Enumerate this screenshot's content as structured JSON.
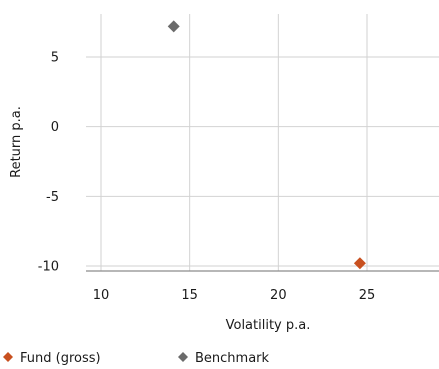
{
  "chart_data": {
    "type": "scatter",
    "xlabel": "Volatility p.a.",
    "ylabel": "Return p.a.",
    "xlim": [
      9,
      29
    ],
    "ylim": [
      -10.5,
      8
    ],
    "xticks": [
      10,
      15,
      20,
      25
    ],
    "yticks": [
      5,
      0,
      -5,
      -10
    ],
    "xtick_labels": [
      "10",
      "15",
      "20",
      "25"
    ],
    "ytick_labels": [
      "5",
      "0",
      "-5",
      "-10"
    ],
    "grid": true,
    "legend_position": "bottom",
    "series": [
      {
        "name": "Fund (gross)",
        "color": "#c8501f",
        "marker": "diamond",
        "points": [
          {
            "x": 24.6,
            "y": -9.8
          }
        ]
      },
      {
        "name": "Benchmark",
        "color": "#6b6b6b",
        "marker": "diamond",
        "points": [
          {
            "x": 14.1,
            "y": 7.2
          }
        ]
      }
    ]
  }
}
